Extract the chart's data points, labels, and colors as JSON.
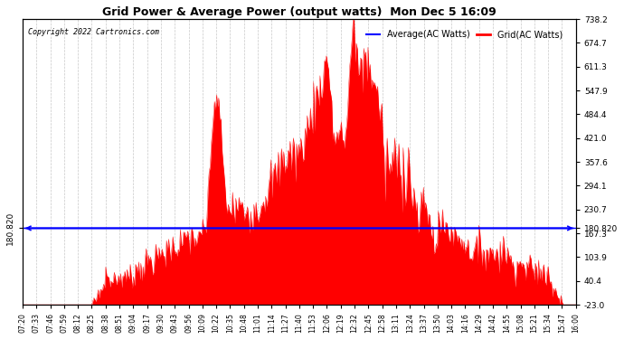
{
  "title": "Grid Power & Average Power (output watts)  Mon Dec 5 16:09",
  "copyright": "Copyright 2022 Cartronics.com",
  "legend_avg": "Average(AC Watts)",
  "legend_grid": "Grid(AC Watts)",
  "avg_value": 180.82,
  "avg_label": "180.820",
  "ylim_min": -23.0,
  "ylim_max": 738.2,
  "yticks_right": [
    738.2,
    674.7,
    611.3,
    547.9,
    484.4,
    421.0,
    357.6,
    294.1,
    230.7,
    167.3,
    103.9,
    40.4,
    -23.0
  ],
  "background_color": "#ffffff",
  "fill_color": "#ff0000",
  "avg_line_color": "#0000ff",
  "grid_color": "#c8c8c8",
  "title_color": "#000000",
  "copyright_color": "#000000",
  "legend_avg_color": "#0000ff",
  "legend_grid_color": "#ff0000",
  "xtick_labels": [
    "07:20",
    "07:33",
    "07:46",
    "07:59",
    "08:12",
    "08:25",
    "08:38",
    "08:51",
    "09:04",
    "09:17",
    "09:30",
    "09:43",
    "09:56",
    "10:09",
    "10:22",
    "10:35",
    "10:48",
    "11:01",
    "11:14",
    "11:27",
    "11:40",
    "11:53",
    "12:06",
    "12:19",
    "12:32",
    "12:45",
    "12:58",
    "13:11",
    "13:24",
    "13:37",
    "13:50",
    "14:03",
    "14:16",
    "14:29",
    "14:42",
    "14:55",
    "15:08",
    "15:21",
    "15:34",
    "15:47",
    "16:00"
  ]
}
